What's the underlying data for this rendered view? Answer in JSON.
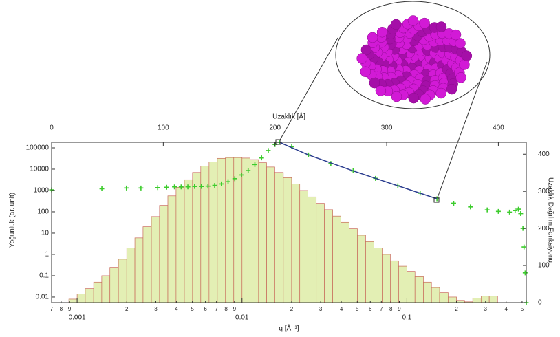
{
  "chart_data": {
    "type": "histogram",
    "xlabel": "q [Å⁻¹]",
    "ylabel": "Yoğunluk (ar. unit)",
    "x2label": "Uzaklık [Å]",
    "y2label": "Uzaklık Dağılım Fonksiyonu",
    "xscale": "log",
    "yscale": "log",
    "color": "#e3efb4",
    "edgecolor": "#c86a5a",
    "xlim": [
      0.0007,
      0.53
    ],
    "ylim": [
      0.0055,
      181000
    ],
    "x2lim": [
      0,
      425
    ],
    "y2lim": [
      0,
      432
    ],
    "xticks": [
      {
        "value": 0.0007,
        "label": "7"
      },
      {
        "value": 0.0008,
        "label": "8"
      },
      {
        "value": 0.0009,
        "label": "9"
      },
      0.001,
      {
        "value": 0.002,
        "label": "2"
      },
      {
        "value": 0.003,
        "label": "3"
      },
      {
        "value": 0.004,
        "label": "4"
      },
      {
        "value": 0.005,
        "label": "5"
      },
      {
        "value": 0.006,
        "label": "6"
      },
      {
        "value": 0.007,
        "label": "7"
      },
      {
        "value": 0.008,
        "label": "8"
      },
      {
        "value": 0.009,
        "label": "9"
      },
      0.01,
      {
        "value": 0.02,
        "label": "2"
      },
      {
        "value": 0.03,
        "label": "3"
      },
      {
        "value": 0.04,
        "label": "4"
      },
      {
        "value": 0.05,
        "label": "5"
      },
      {
        "value": 0.06,
        "label": "6"
      },
      {
        "value": 0.07,
        "label": "7"
      },
      {
        "value": 0.08,
        "label": "8"
      },
      {
        "value": 0.09,
        "label": "9"
      },
      0.1,
      {
        "value": 0.2,
        "label": "2"
      },
      {
        "value": 0.3,
        "label": "3"
      },
      {
        "value": 0.4,
        "label": "4"
      },
      {
        "value": 0.5,
        "label": "5"
      }
    ],
    "yticks": [
      0.01,
      0.1,
      1,
      10,
      100,
      1000,
      10000,
      100000
    ],
    "x2ticks": [
      0,
      100,
      200,
      300,
      400
    ],
    "y2ticks": [
      0,
      100,
      200,
      300,
      400
    ],
    "bins": [
      0.000891,
      0.001,
      0.00112,
      0.00126,
      0.00141,
      0.00158,
      0.00178,
      0.002,
      0.00224,
      0.00251,
      0.00282,
      0.00316,
      0.00355,
      0.00398,
      0.00447,
      0.00501,
      0.00562,
      0.00631,
      0.00708,
      0.00794,
      0.00891,
      0.01,
      0.0112,
      0.0126,
      0.0141,
      0.0158,
      0.0178,
      0.02,
      0.0224,
      0.0251,
      0.0282,
      0.0316,
      0.0355,
      0.0398,
      0.0447,
      0.0501,
      0.0562,
      0.0631,
      0.0708,
      0.0794,
      0.0891,
      0.1,
      0.112,
      0.126,
      0.141,
      0.158,
      0.178,
      0.2,
      0.224,
      0.251,
      0.282,
      0.316,
      0.355
    ],
    "counts": [
      0.008,
      0.014,
      0.025,
      0.05,
      0.1,
      0.25,
      0.6,
      2,
      6,
      20,
      60,
      200,
      560,
      1400,
      3200,
      7000,
      14000,
      22000,
      32000,
      35000,
      35000,
      33000,
      28000,
      20000,
      12600,
      7000,
      4000,
      2000,
      1000,
      500,
      250,
      126,
      63,
      32,
      16,
      8,
      4,
      2,
      1,
      0.5,
      0.28,
      0.16,
      0.09,
      0.05,
      0.028,
      0.016,
      0.01,
      0.007,
      0.006,
      0.009,
      0.011,
      0.011
    ],
    "series": [
      {
        "type": "scatter",
        "marker": "+",
        "axis": "y2",
        "color": "#3ccc2c",
        "x": [
          0,
          45,
          67,
          80,
          95,
          103,
          110,
          116,
          122,
          128,
          134,
          140,
          146,
          152,
          158,
          164,
          170,
          176,
          182,
          188,
          194,
          200,
          204,
          215,
          230,
          250,
          270,
          290,
          310,
          330,
          345,
          360,
          375,
          390,
          400,
          410,
          415,
          418,
          420,
          422,
          423,
          424,
          425
        ],
        "values": [
          304,
          307,
          309,
          309,
          310,
          311,
          312,
          312,
          312,
          313,
          313,
          314,
          316,
          320,
          326,
          334,
          344,
          356,
          372,
          390,
          410,
          426,
          432,
          420,
          398,
          375,
          355,
          335,
          315,
          295,
          280,
          268,
          258,
          250,
          246,
          244,
          248,
          252,
          240,
          200,
          150,
          80,
          0
        ]
      },
      {
        "type": "line",
        "axis": "y2",
        "color": "#2b3d8f",
        "x": [
          204,
          230,
          270,
          310,
          345
        ],
        "values": [
          432,
          398,
          355,
          315,
          280
        ]
      }
    ]
  }
}
